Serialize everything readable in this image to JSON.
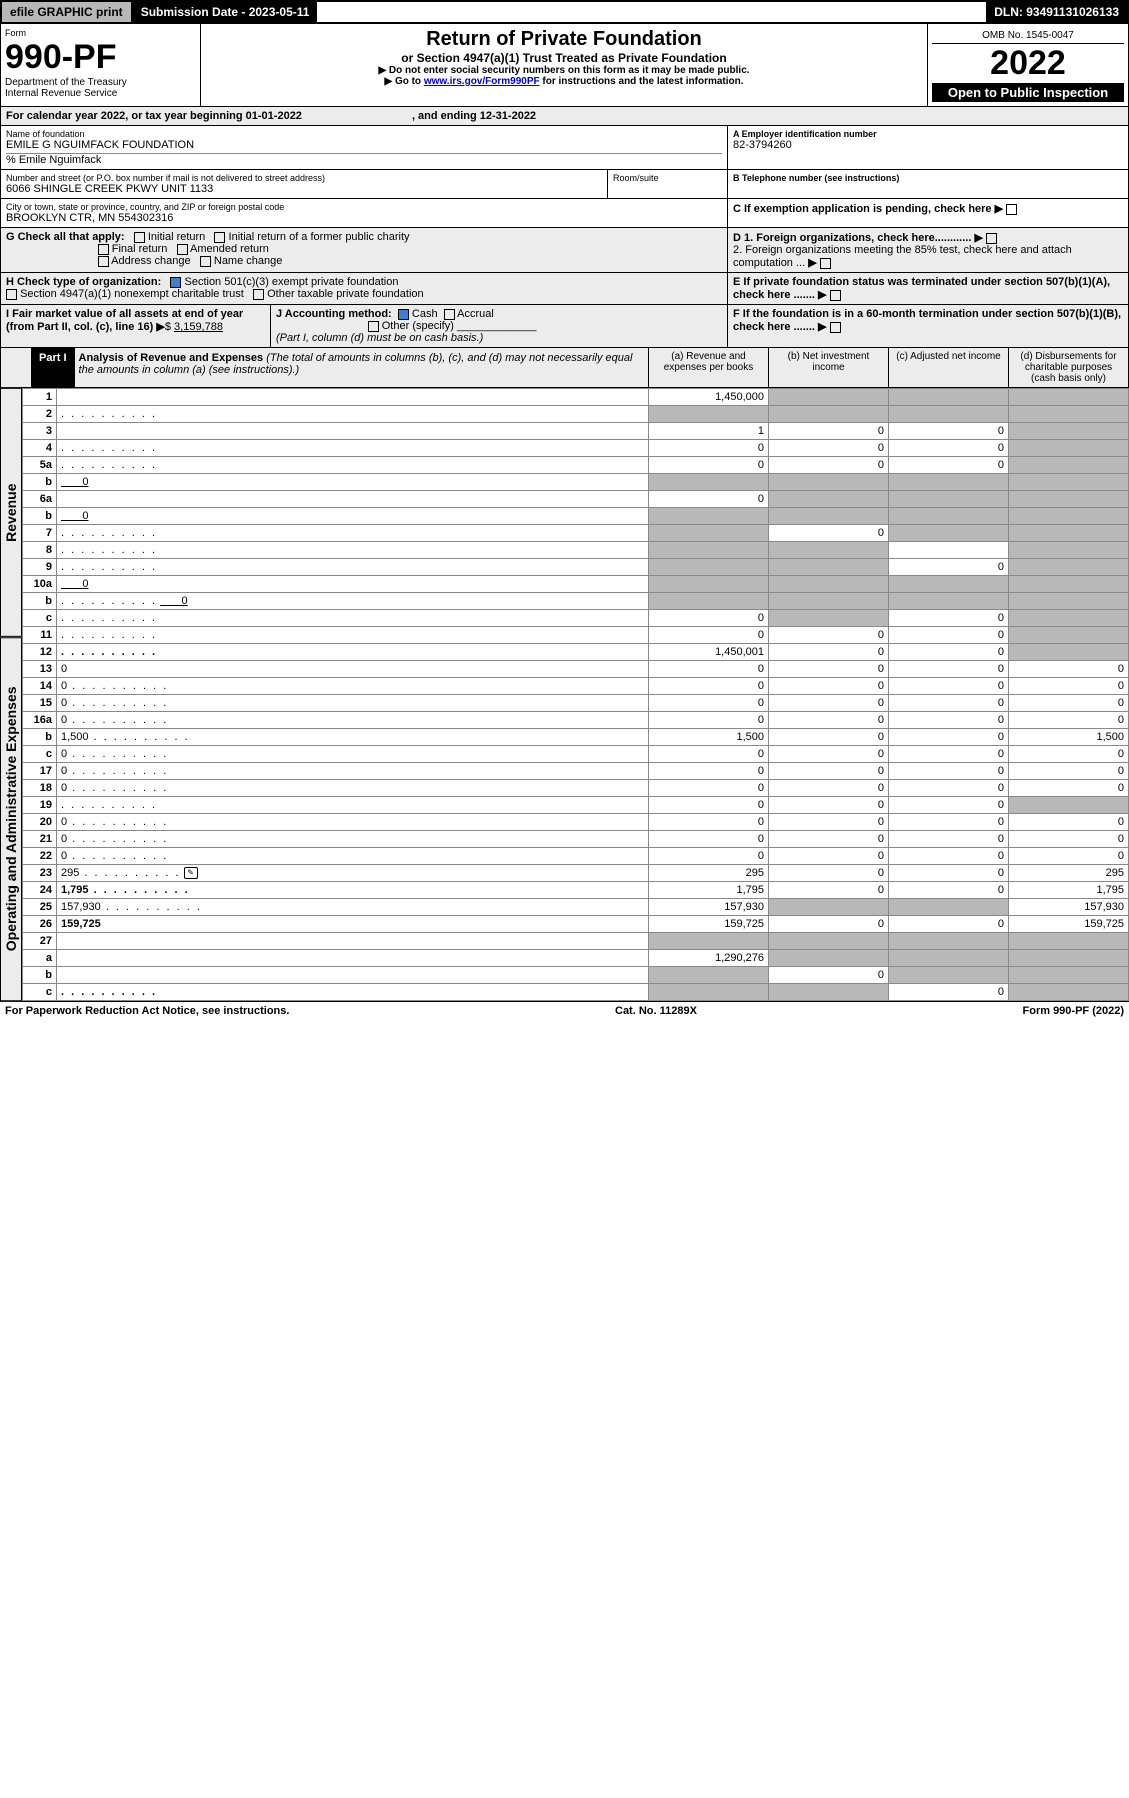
{
  "topbar": {
    "efile": "efile GRAPHIC print",
    "submission_label": "Submission Date - 2023-05-11",
    "dln": "DLN: 93491131026133"
  },
  "header": {
    "form_label": "Form",
    "form_number": "990-PF",
    "dept": "Department of the Treasury",
    "irs": "Internal Revenue Service",
    "title": "Return of Private Foundation",
    "subtitle": "or Section 4947(a)(1) Trust Treated as Private Foundation",
    "note1": "▶ Do not enter social security numbers on this form as it may be made public.",
    "note2_pre": "▶ Go to ",
    "note2_link": "www.irs.gov/Form990PF",
    "note2_post": " for instructions and the latest information.",
    "omb": "OMB No. 1545-0047",
    "year": "2022",
    "open": "Open to Public Inspection"
  },
  "calendar": {
    "text_pre": "For calendar year 2022, or tax year beginning ",
    "begin": "01-01-2022",
    "mid": " , and ending ",
    "end": "12-31-2022"
  },
  "foundation": {
    "name_label": "Name of foundation",
    "name": "EMILE G NGUIMFACK FOUNDATION",
    "care_of": "% Emile Nguimfack",
    "addr_label": "Number and street (or P.O. box number if mail is not delivered to street address)",
    "addr": "6066 SHINGLE CREEK PKWY UNIT 1133",
    "room_label": "Room/suite",
    "city_label": "City or town, state or province, country, and ZIP or foreign postal code",
    "city": "BROOKLYN CTR, MN  554302316",
    "ein_label": "A Employer identification number",
    "ein": "82-3794260",
    "tel_label": "B Telephone number (see instructions)",
    "c_label": "C If exemption application is pending, check here"
  },
  "checks": {
    "g_label": "G Check all that apply:",
    "g1": "Initial return",
    "g2": "Initial return of a former public charity",
    "g3": "Final return",
    "g4": "Amended return",
    "g5": "Address change",
    "g6": "Name change",
    "h_label": "H Check type of organization:",
    "h1": "Section 501(c)(3) exempt private foundation",
    "h2": "Section 4947(a)(1) nonexempt charitable trust",
    "h3": "Other taxable private foundation",
    "i_label": "I Fair market value of all assets at end of year (from Part II, col. (c), line 16)",
    "i_val": "3,159,788",
    "j_label": "J Accounting method:",
    "j1": "Cash",
    "j2": "Accrual",
    "j3": "Other (specify)",
    "j_note": "(Part I, column (d) must be on cash basis.)",
    "d1": "D 1. Foreign organizations, check here............",
    "d2": "2. Foreign organizations meeting the 85% test, check here and attach computation ...",
    "e": "E  If private foundation status was terminated under section 507(b)(1)(A), check here .......",
    "f": "F  If the foundation is in a 60-month termination under section 507(b)(1)(B), check here ......."
  },
  "part1": {
    "label": "Part I",
    "title": "Analysis of Revenue and Expenses",
    "title_note": " (The total of amounts in columns (b), (c), and (d) may not necessarily equal the amounts in column (a) (see instructions).)",
    "col_a": "(a) Revenue and expenses per books",
    "col_b": "(b) Net investment income",
    "col_c": "(c) Adjusted net income",
    "col_d": "(d) Disbursements for charitable purposes (cash basis only)"
  },
  "sides": {
    "revenue": "Revenue",
    "expenses": "Operating and Administrative Expenses"
  },
  "rows": [
    {
      "n": "1",
      "d": "",
      "a": "1,450,000",
      "b": "",
      "c": "",
      "sh": [
        "b",
        "c",
        "d"
      ]
    },
    {
      "n": "2",
      "d": "",
      "a": "",
      "b": "",
      "c": "",
      "sh": [
        "a",
        "b",
        "c",
        "d"
      ],
      "dots": true
    },
    {
      "n": "3",
      "d": "",
      "a": "1",
      "b": "0",
      "c": "0",
      "sh": [
        "d"
      ]
    },
    {
      "n": "4",
      "d": "",
      "a": "0",
      "b": "0",
      "c": "0",
      "sh": [
        "d"
      ],
      "dots": true
    },
    {
      "n": "5a",
      "d": "",
      "a": "0",
      "b": "0",
      "c": "0",
      "sh": [
        "d"
      ],
      "dots": true
    },
    {
      "n": "b",
      "d": "",
      "a": "",
      "b": "",
      "c": "",
      "sh": [
        "a",
        "b",
        "c",
        "d"
      ],
      "inline": "0"
    },
    {
      "n": "6a",
      "d": "",
      "a": "0",
      "b": "",
      "c": "",
      "sh": [
        "b",
        "c",
        "d"
      ]
    },
    {
      "n": "b",
      "d": "",
      "a": "",
      "b": "",
      "c": "",
      "sh": [
        "a",
        "b",
        "c",
        "d"
      ],
      "inline": "0"
    },
    {
      "n": "7",
      "d": "",
      "a": "",
      "b": "0",
      "c": "",
      "sh": [
        "a",
        "c",
        "d"
      ],
      "dots": true
    },
    {
      "n": "8",
      "d": "",
      "a": "",
      "b": "",
      "c": "",
      "sh": [
        "a",
        "b",
        "d"
      ],
      "dots": true
    },
    {
      "n": "9",
      "d": "",
      "a": "",
      "b": "",
      "c": "0",
      "sh": [
        "a",
        "b",
        "d"
      ],
      "dots": true
    },
    {
      "n": "10a",
      "d": "",
      "a": "",
      "b": "",
      "c": "",
      "sh": [
        "a",
        "b",
        "c",
        "d"
      ],
      "inline": "0"
    },
    {
      "n": "b",
      "d": "",
      "a": "",
      "b": "",
      "c": "",
      "sh": [
        "a",
        "b",
        "c",
        "d"
      ],
      "dots": true,
      "inline": "0"
    },
    {
      "n": "c",
      "d": "",
      "a": "0",
      "b": "",
      "c": "0",
      "sh": [
        "b",
        "d"
      ],
      "dots": true
    },
    {
      "n": "11",
      "d": "",
      "a": "0",
      "b": "0",
      "c": "0",
      "sh": [
        "d"
      ],
      "dots": true
    },
    {
      "n": "12",
      "d": "",
      "a": "1,450,001",
      "b": "0",
      "c": "0",
      "sh": [
        "d"
      ],
      "dots": true,
      "bold": true
    },
    {
      "n": "13",
      "d": "0",
      "a": "0",
      "b": "0",
      "c": "0"
    },
    {
      "n": "14",
      "d": "0",
      "a": "0",
      "b": "0",
      "c": "0",
      "dots": true
    },
    {
      "n": "15",
      "d": "0",
      "a": "0",
      "b": "0",
      "c": "0",
      "dots": true
    },
    {
      "n": "16a",
      "d": "0",
      "a": "0",
      "b": "0",
      "c": "0",
      "dots": true
    },
    {
      "n": "b",
      "d": "1,500",
      "a": "1,500",
      "b": "0",
      "c": "0",
      "dots": true
    },
    {
      "n": "c",
      "d": "0",
      "a": "0",
      "b": "0",
      "c": "0",
      "dots": true
    },
    {
      "n": "17",
      "d": "0",
      "a": "0",
      "b": "0",
      "c": "0",
      "dots": true
    },
    {
      "n": "18",
      "d": "0",
      "a": "0",
      "b": "0",
      "c": "0",
      "dots": true
    },
    {
      "n": "19",
      "d": "",
      "a": "0",
      "b": "0",
      "c": "0",
      "sh": [
        "d"
      ],
      "dots": true
    },
    {
      "n": "20",
      "d": "0",
      "a": "0",
      "b": "0",
      "c": "0",
      "dots": true
    },
    {
      "n": "21",
      "d": "0",
      "a": "0",
      "b": "0",
      "c": "0",
      "dots": true
    },
    {
      "n": "22",
      "d": "0",
      "a": "0",
      "b": "0",
      "c": "0",
      "dots": true
    },
    {
      "n": "23",
      "d": "295",
      "a": "295",
      "b": "0",
      "c": "0",
      "dots": true,
      "icon": true
    },
    {
      "n": "24",
      "d": "1,795",
      "a": "1,795",
      "b": "0",
      "c": "0",
      "dots": true,
      "bold": true
    },
    {
      "n": "25",
      "d": "157,930",
      "a": "157,930",
      "b": "",
      "c": "",
      "sh": [
        "b",
        "c"
      ],
      "dots": true
    },
    {
      "n": "26",
      "d": "159,725",
      "a": "159,725",
      "b": "0",
      "c": "0",
      "bold": true
    },
    {
      "n": "27",
      "d": "",
      "a": "",
      "b": "",
      "c": "",
      "sh": [
        "a",
        "b",
        "c",
        "d"
      ]
    },
    {
      "n": "a",
      "d": "",
      "a": "1,290,276",
      "b": "",
      "c": "",
      "sh": [
        "b",
        "c",
        "d"
      ],
      "bold": true
    },
    {
      "n": "b",
      "d": "",
      "a": "",
      "b": "0",
      "c": "",
      "sh": [
        "a",
        "c",
        "d"
      ],
      "bold": true
    },
    {
      "n": "c",
      "d": "",
      "a": "",
      "b": "",
      "c": "0",
      "sh": [
        "a",
        "b",
        "d"
      ],
      "bold": true,
      "dots": true
    }
  ],
  "footer": {
    "left": "For Paperwork Reduction Act Notice, see instructions.",
    "mid": "Cat. No. 11289X",
    "right": "Form 990-PF (2022)"
  }
}
